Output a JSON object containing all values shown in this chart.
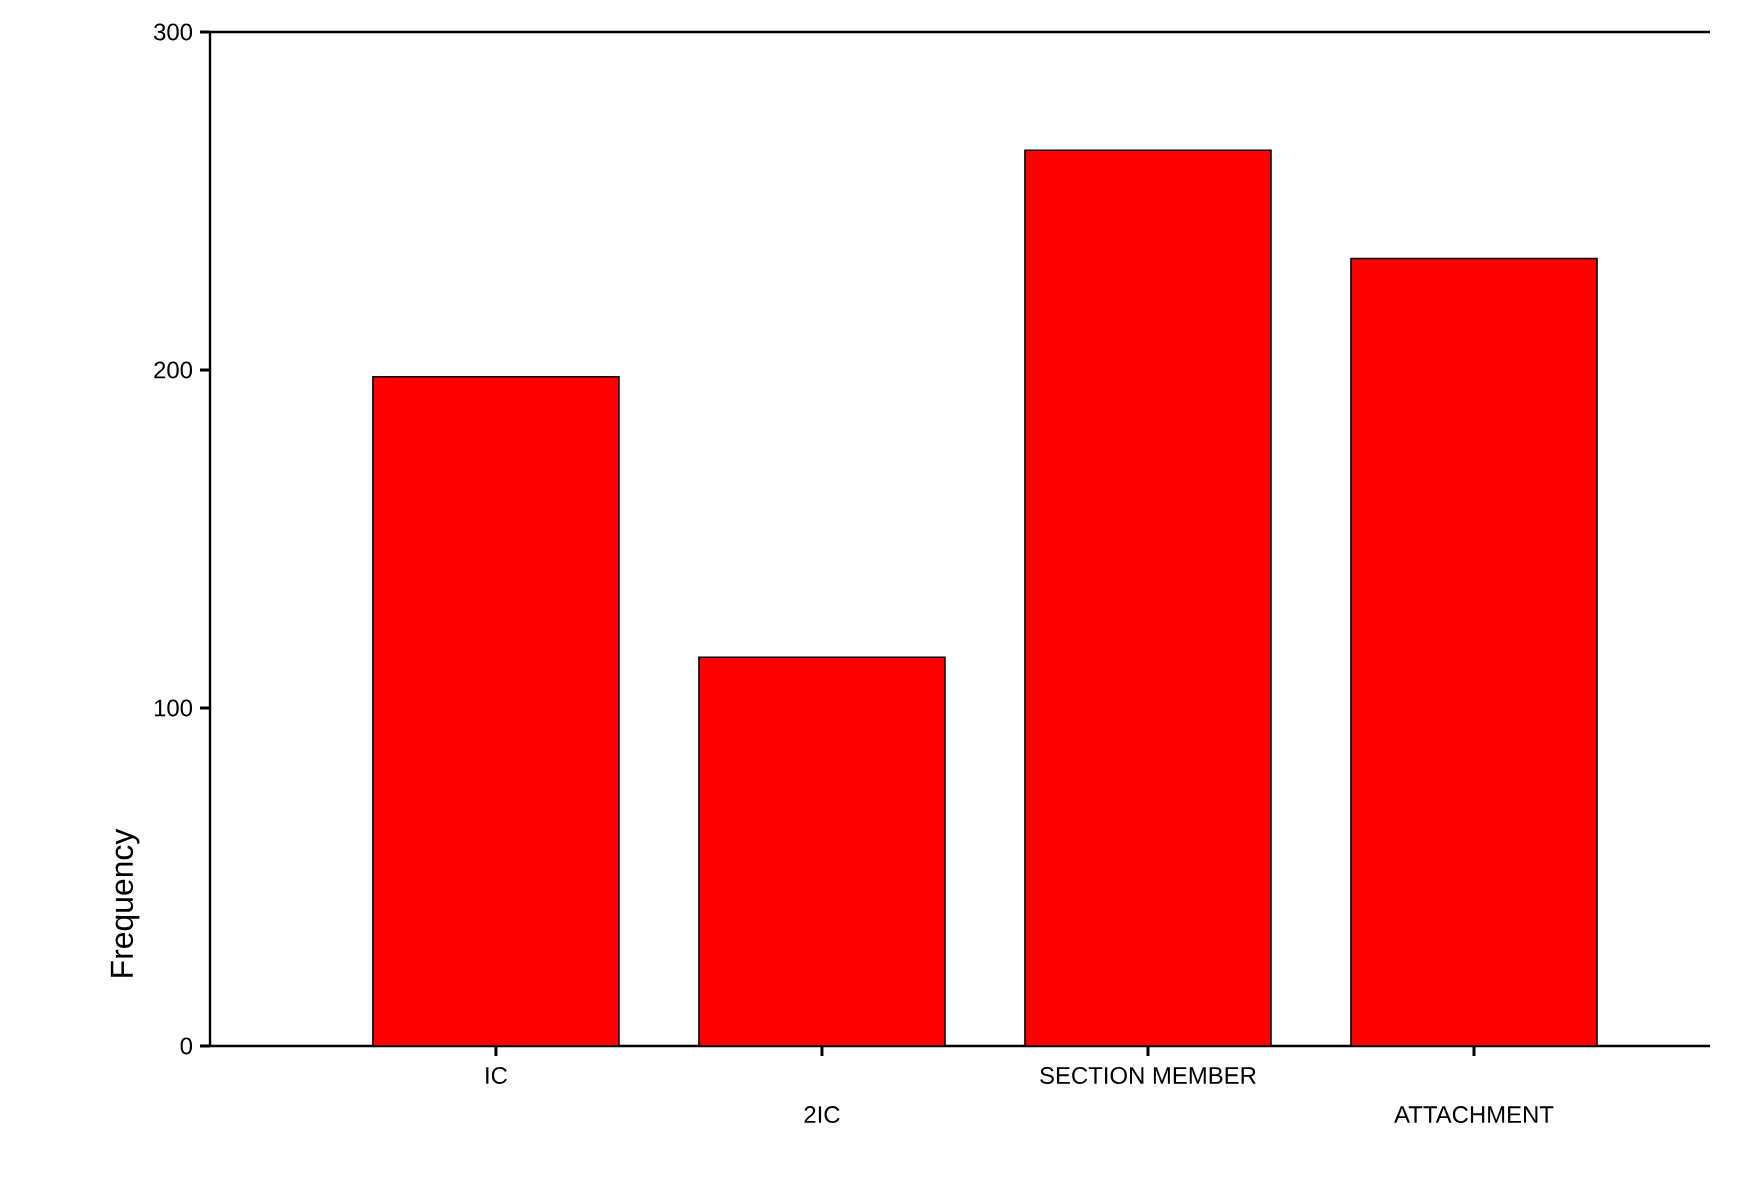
{
  "chart_data": {
    "type": "bar",
    "ylabel": "Frequency",
    "categories": [
      "IC",
      "2IC",
      "SECTION MEMBER",
      "ATTACHMENT"
    ],
    "values": [
      198,
      115,
      265,
      233
    ],
    "color": "#ff0000",
    "ylim": [
      0,
      300
    ],
    "yticks": [
      0,
      100,
      200,
      300
    ],
    "grid": false
  }
}
